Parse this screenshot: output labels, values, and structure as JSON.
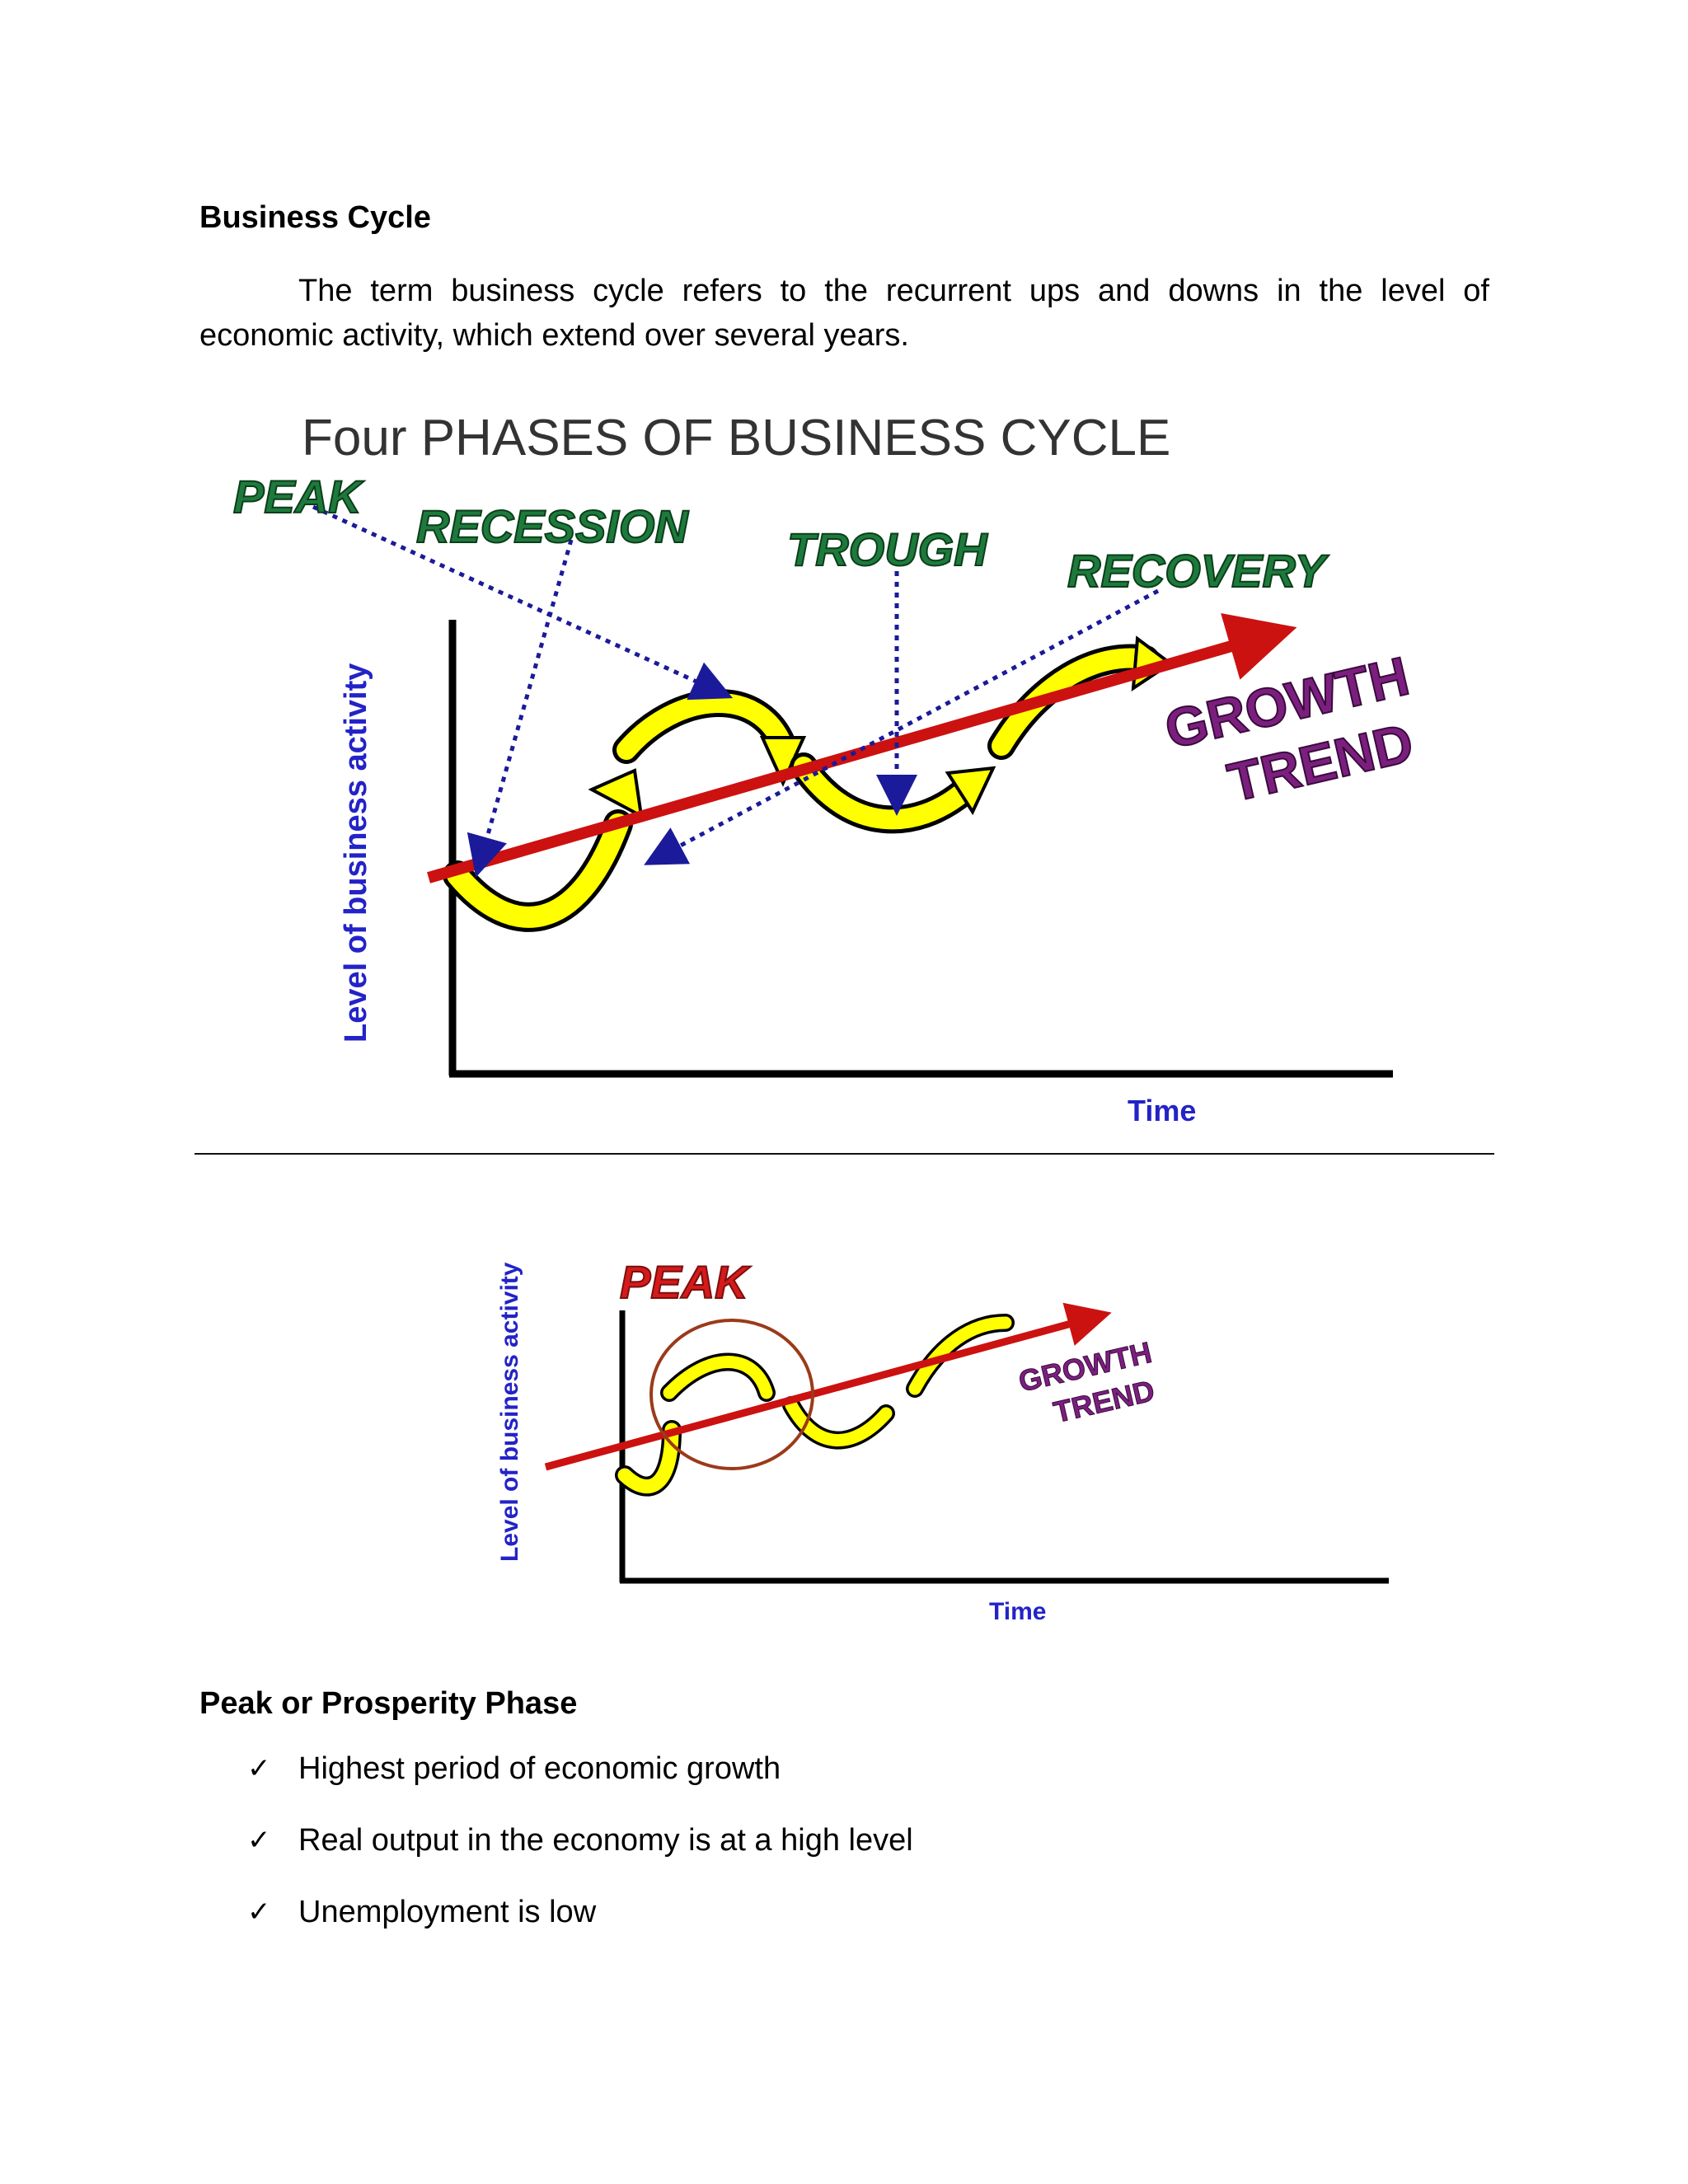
{
  "document": {
    "heading": "Business Cycle",
    "intro": "The term business cycle refers to the recurrent ups and downs in the level of economic activity, which extend over several years."
  },
  "figure1": {
    "title": "Four PHASES OF BUSINESS CYCLE",
    "phases": [
      "PEAK",
      "RECESSION",
      "TROUGH",
      "RECOVERY"
    ],
    "trend_line1": "GROWTH",
    "trend_line2": "TREND",
    "ylabel": "Level of business activity",
    "xlabel": "Time",
    "colors": {
      "phase": "#1d7a3c",
      "trend": "#7b1f7e",
      "axis_label": "#2323c8",
      "trend_arrow": "#cc1111",
      "wave": "#ffff00"
    }
  },
  "figure2": {
    "highlight": "PEAK",
    "trend_line1": "GROWTH",
    "trend_line2": "TREND",
    "ylabel": "Level of business activity",
    "xlabel": "Time",
    "colors": {
      "highlight": "#d41a1a",
      "circle": "#9b3a1a"
    }
  },
  "section": {
    "heading": "Peak or Prosperity Phase",
    "check_icon": "✓",
    "bullets": [
      "Highest period of economic growth",
      "Real output in the economy is at a high level",
      "Unemployment is low"
    ]
  }
}
